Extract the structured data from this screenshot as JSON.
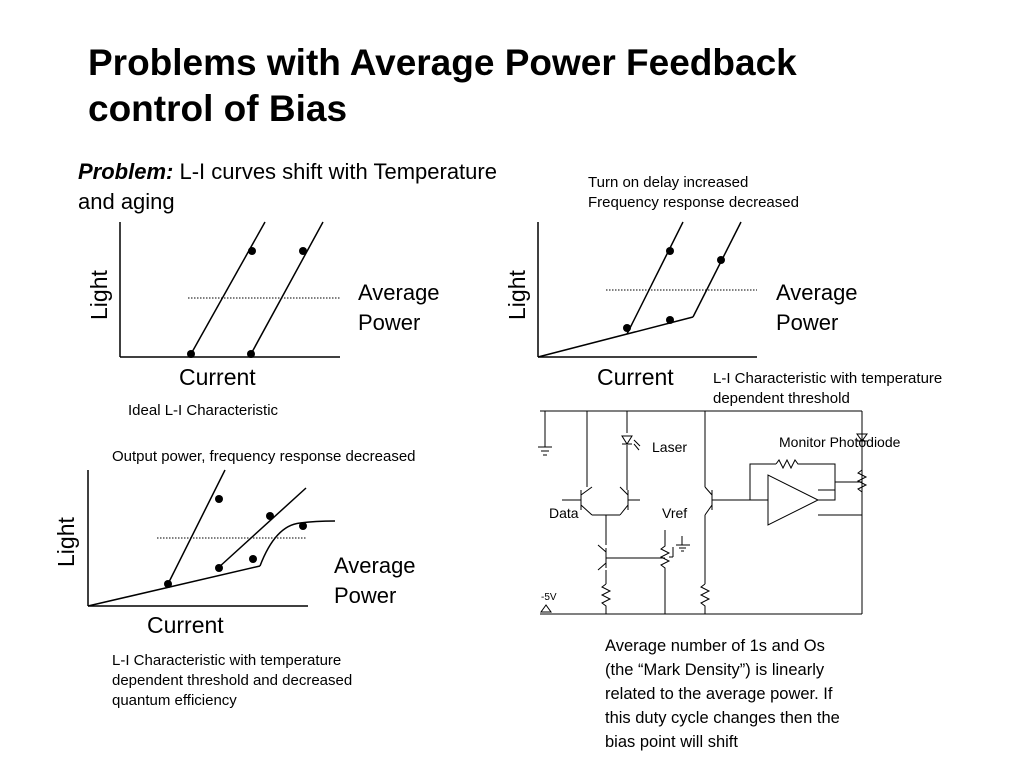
{
  "slide": {
    "title_line1": "Problems with Average Power Feedback",
    "title_line2": "control of Bias",
    "problem_lead": "Problem:",
    "problem_rest": " L-I curves shift with Temperature",
    "problem_line2": "and aging"
  },
  "graph1": {
    "y_label": "Light",
    "x_label": "Current",
    "avg_line1": "Average",
    "avg_line2": "Power",
    "caption": "Ideal L-I Characteristic"
  },
  "graph2": {
    "top_note_line1": "Turn on delay increased",
    "top_note_line2": "Frequency response decreased",
    "y_label": "Light",
    "x_label": "Current",
    "avg_line1": "Average",
    "avg_line2": "Power",
    "caption_line1": "L-I Characteristic with temperature",
    "caption_line2": "dependent threshold"
  },
  "graph3": {
    "top_note": "Output power, frequency response decreased",
    "y_label": "Light",
    "x_label": "Current",
    "avg_line1": "Average",
    "avg_line2": "Power",
    "caption_line1": "L-I Characteristic with temperature",
    "caption_line2": "dependent threshold and decreased",
    "caption_line3": "quantum efficiency"
  },
  "circuit": {
    "laser": "Laser",
    "monitor": "Monitor Photodiode",
    "data": "Data",
    "vref": "Vref",
    "supply": "-5V"
  },
  "note": {
    "line1": "Average number of 1s and Os",
    "line2": "(the “Mark Density”) is linearly",
    "line3": "related to the average power.  If",
    "line4": "this duty cycle changes then the",
    "line5": "bias point will shift"
  }
}
